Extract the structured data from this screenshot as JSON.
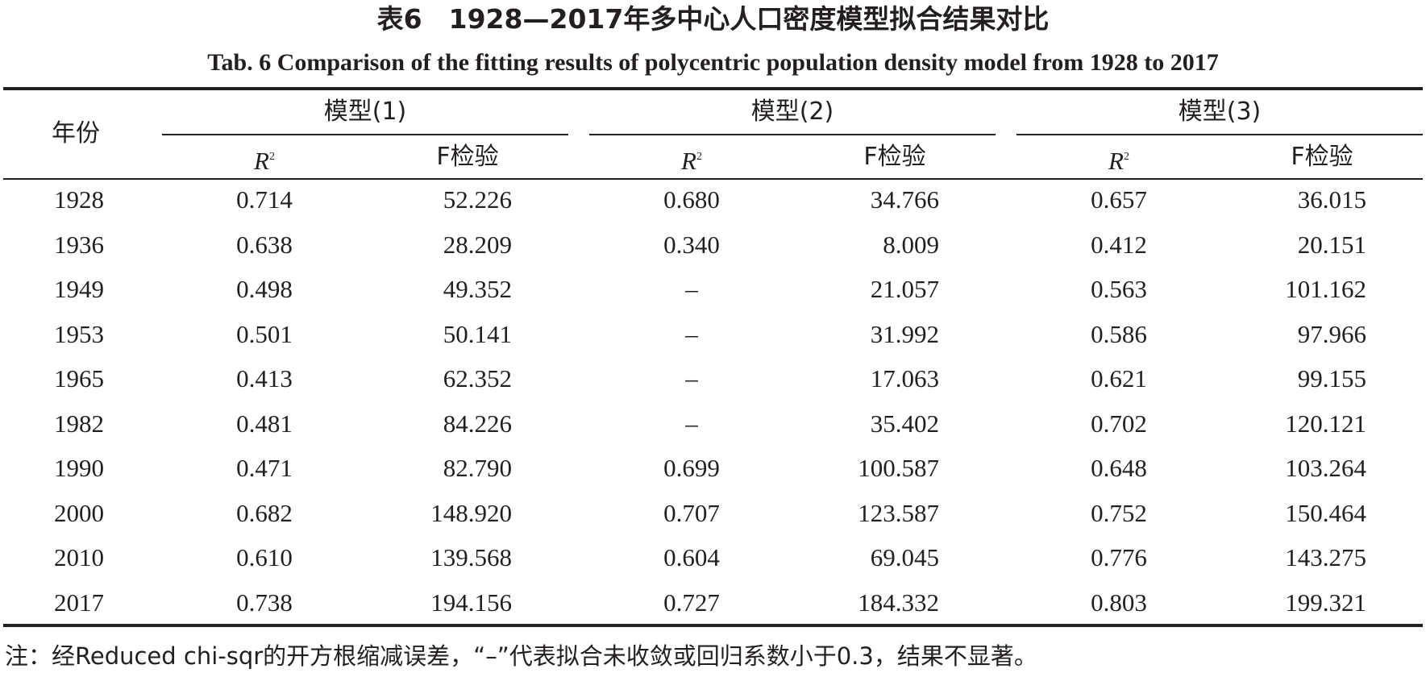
{
  "title_cn": "表6　1928—2017年多中心人口密度模型拟合结果对比",
  "title_en": "Tab. 6   Comparison of the fitting results of polycentric population density model from 1928 to 2017",
  "header": {
    "year": "年份",
    "models": [
      "模型(1)",
      "模型(2)",
      "模型(3)"
    ],
    "r2_letter": "R",
    "r2_sup": "2",
    "f_test": "F检验"
  },
  "rows": [
    {
      "year": "1928",
      "m1_r2": "0.714",
      "m1_f": "52.226",
      "m2_r2": "0.680",
      "m2_f": "34.766",
      "m3_r2": "0.657",
      "m3_f": "36.015"
    },
    {
      "year": "1936",
      "m1_r2": "0.638",
      "m1_f": "28.209",
      "m2_r2": "0.340",
      "m2_f": "8.009",
      "m3_r2": "0.412",
      "m3_f": "20.151"
    },
    {
      "year": "1949",
      "m1_r2": "0.498",
      "m1_f": "49.352",
      "m2_r2": "–",
      "m2_f": "21.057",
      "m3_r2": "0.563",
      "m3_f": "101.162"
    },
    {
      "year": "1953",
      "m1_r2": "0.501",
      "m1_f": "50.141",
      "m2_r2": "–",
      "m2_f": "31.992",
      "m3_r2": "0.586",
      "m3_f": "97.966"
    },
    {
      "year": "1965",
      "m1_r2": "0.413",
      "m1_f": "62.352",
      "m2_r2": "–",
      "m2_f": "17.063",
      "m3_r2": "0.621",
      "m3_f": "99.155"
    },
    {
      "year": "1982",
      "m1_r2": "0.481",
      "m1_f": "84.226",
      "m2_r2": "–",
      "m2_f": "35.402",
      "m3_r2": "0.702",
      "m3_f": "120.121"
    },
    {
      "year": "1990",
      "m1_r2": "0.471",
      "m1_f": "82.790",
      "m2_r2": "0.699",
      "m2_f": "100.587",
      "m3_r2": "0.648",
      "m3_f": "103.264"
    },
    {
      "year": "2000",
      "m1_r2": "0.682",
      "m1_f": "148.920",
      "m2_r2": "0.707",
      "m2_f": "123.587",
      "m3_r2": "0.752",
      "m3_f": "150.464"
    },
    {
      "year": "2010",
      "m1_r2": "0.610",
      "m1_f": "139.568",
      "m2_r2": "0.604",
      "m2_f": "69.045",
      "m3_r2": "0.776",
      "m3_f": "143.275"
    },
    {
      "year": "2017",
      "m1_r2": "0.738",
      "m1_f": "194.156",
      "m2_r2": "0.727",
      "m2_f": "184.332",
      "m3_r2": "0.803",
      "m3_f": "199.321"
    }
  ],
  "note": "注：经Reduced chi-sqr的开方根缩减误差，“–”代表拟合未收敛或回归系数小于0.3，结果不显著。"
}
